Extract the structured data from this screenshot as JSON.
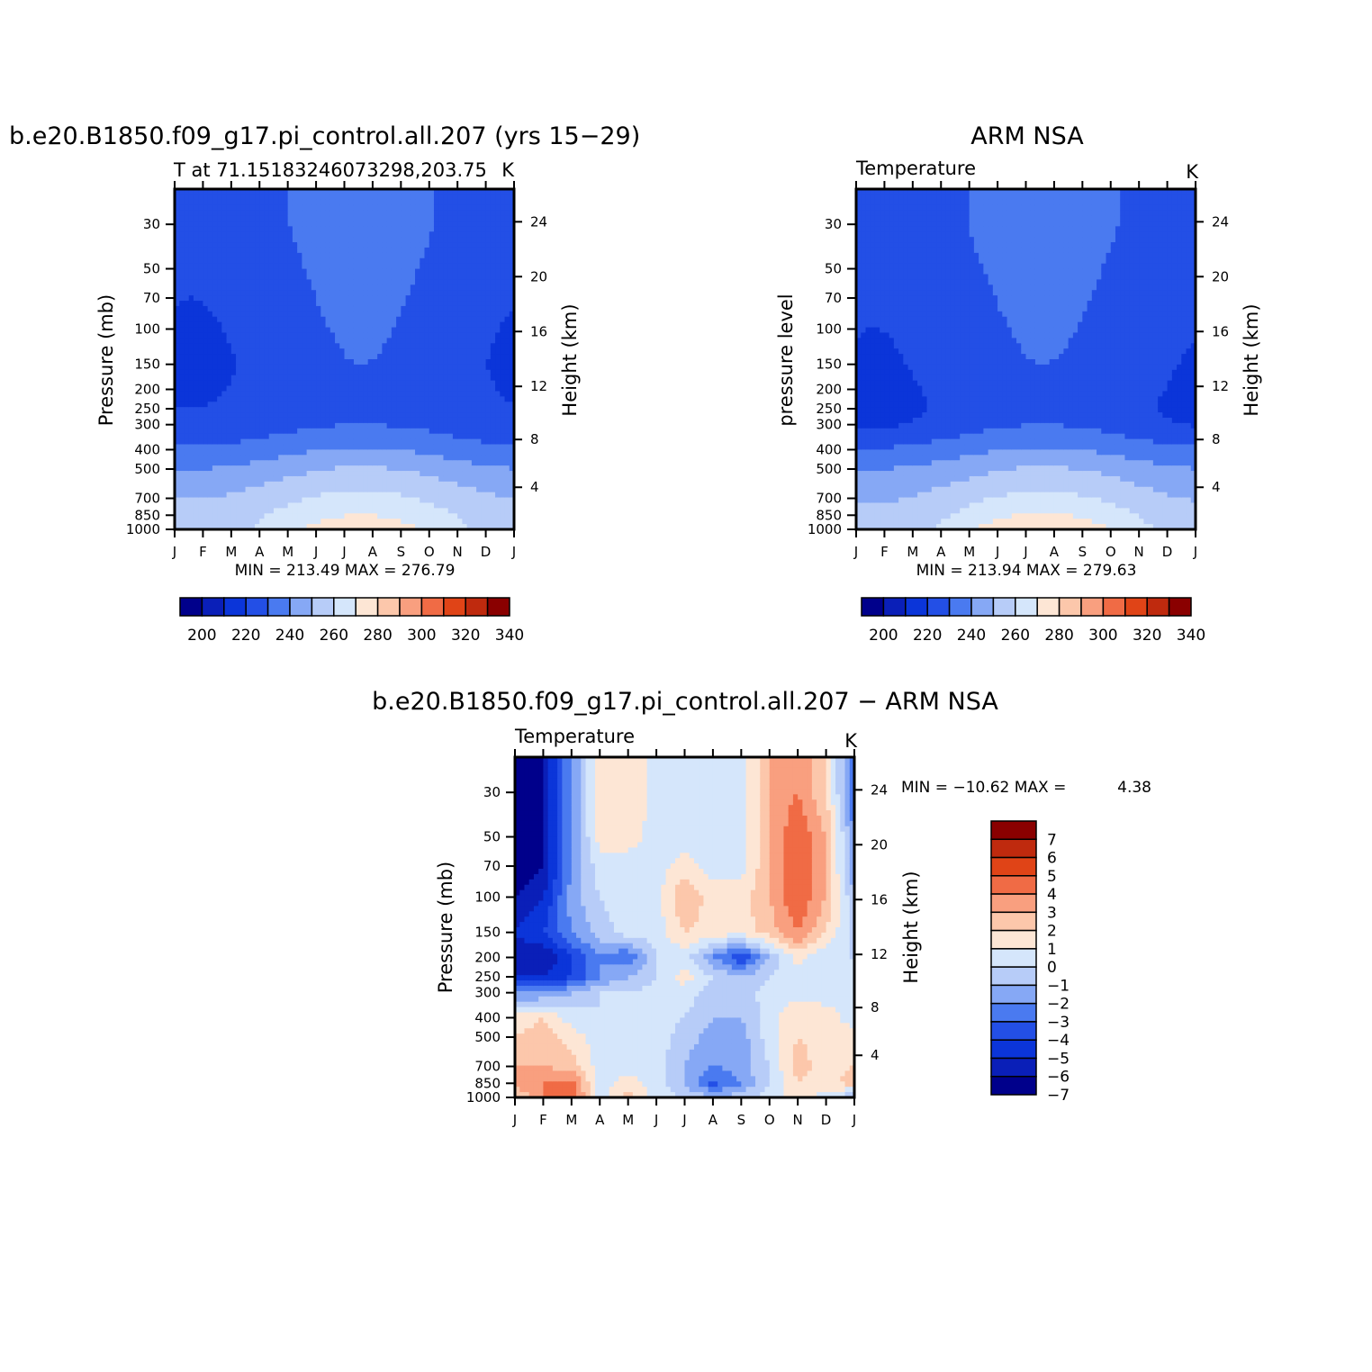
{
  "colors": {
    "abs": [
      "#00008b",
      "#0a1fb8",
      "#0b35d9",
      "#234fe6",
      "#4a7af0",
      "#86a8f5",
      "#b7ccf8",
      "#d5e6fb",
      "#fde6d5",
      "#fcc7ab",
      "#f99f7f",
      "#f06b45",
      "#e04417",
      "#bf2a0e",
      "#8a0000"
    ],
    "diff": [
      "#00008b",
      "#0a1fb8",
      "#0b35d9",
      "#234fe6",
      "#4a7af0",
      "#86a8f5",
      "#b7ccf8",
      "#d5e6fb",
      "#fde6d5",
      "#fcc7ab",
      "#f99f7f",
      "#f06b45",
      "#e04417",
      "#bf2a0e",
      "#8a0000"
    ]
  },
  "chart_data": [
    {
      "type": "heatmap",
      "title": "b.e20.B1850.f09_g17.pi_control.all.207 (yrs 15−29)",
      "subtitle_left": "T at 71.15183246073298,203.75",
      "subtitle_right": "K",
      "ylabel": "Pressure (mb)",
      "y2label": "Height (km)",
      "x_ticklabels": [
        "J",
        "F",
        "M",
        "A",
        "M",
        "J",
        "J",
        "A",
        "S",
        "O",
        "N",
        "D",
        "J"
      ],
      "y_ticks": [
        30,
        50,
        70,
        100,
        150,
        200,
        250,
        300,
        400,
        500,
        700,
        850,
        1000
      ],
      "y2_ticks": [
        24,
        20,
        16,
        12,
        8,
        4
      ],
      "ylim": [
        1000,
        20
      ],
      "stats": "MIN = 213.49 MAX = 276.79",
      "colorbar": {
        "labels": [
          "200",
          "220",
          "240",
          "260",
          "280",
          "300",
          "320",
          "340"
        ],
        "levels": [
          200,
          210,
          220,
          230,
          240,
          250,
          260,
          270,
          280,
          290,
          300,
          310,
          320,
          330,
          340
        ]
      },
      "profile": {
        "levels": [
          1000,
          850,
          700,
          500,
          400,
          300,
          250,
          200,
          150,
          100,
          70,
          50,
          30
        ],
        "winter_temps": [
          254,
          253,
          250,
          240,
          231,
          222,
          220,
          219,
          218,
          219,
          220,
          221,
          222
        ],
        "summer_temps": [
          276,
          270,
          263,
          251,
          241,
          230,
          229,
          229,
          230,
          231,
          232,
          233,
          235
        ]
      }
    },
    {
      "type": "heatmap",
      "title": "ARM NSA",
      "subtitle_left": "Temperature",
      "subtitle_right": "K",
      "ylabel": "pressure level",
      "y2label": "Height (km)",
      "x_ticklabels": [
        "J",
        "F",
        "M",
        "A",
        "M",
        "J",
        "J",
        "A",
        "S",
        "O",
        "N",
        "D",
        "J"
      ],
      "y_ticks": [
        30,
        50,
        70,
        100,
        150,
        200,
        250,
        300,
        400,
        500,
        700,
        850,
        1000
      ],
      "y2_ticks": [
        24,
        20,
        16,
        12,
        8,
        4
      ],
      "ylim": [
        1000,
        20
      ],
      "stats": "MIN = 213.94 MAX = 279.63",
      "colorbar": {
        "labels": [
          "200",
          "220",
          "240",
          "260",
          "280",
          "300",
          "320",
          "340"
        ],
        "levels": [
          200,
          210,
          220,
          230,
          240,
          250,
          260,
          270,
          280,
          290,
          300,
          310,
          320,
          330,
          340
        ]
      },
      "profile": {
        "levels": [
          1000,
          850,
          700,
          500,
          400,
          300,
          250,
          200,
          150,
          100,
          70,
          50,
          30
        ],
        "winter_temps": [
          253,
          252,
          249,
          240,
          231,
          219,
          217,
          218,
          219,
          220,
          221,
          222,
          223
        ],
        "summer_temps": [
          279,
          271,
          263,
          251,
          241,
          230,
          229,
          229,
          230,
          231,
          232,
          233,
          235
        ]
      }
    },
    {
      "type": "heatmap",
      "title": "b.e20.B1850.f09_g17.pi_control.all.207 − ARM NSA",
      "subtitle_left": "Temperature",
      "subtitle_right": "K",
      "ylabel": "Pressure (mb)",
      "y2label": "Height (km)",
      "x_ticklabels": [
        "J",
        "F",
        "M",
        "A",
        "M",
        "J",
        "J",
        "A",
        "S",
        "O",
        "N",
        "D",
        "J"
      ],
      "y_ticks": [
        30,
        50,
        70,
        100,
        150,
        200,
        250,
        300,
        400,
        500,
        700,
        850,
        1000
      ],
      "y2_ticks": [
        24,
        20,
        16,
        12,
        8,
        4
      ],
      "ylim": [
        1000,
        20
      ],
      "stats_label": "MIN = −10.62 MAX =",
      "stats_value": "4.38",
      "colorbar": {
        "labels": [
          "7",
          "6",
          "5",
          "4",
          "3",
          "2",
          "1",
          "0",
          "−1",
          "−2",
          "−3",
          "−4",
          "−5",
          "−6",
          "−7"
        ],
        "levels": [
          -7,
          -6,
          -5,
          -4,
          -3,
          -2,
          -1,
          0,
          1,
          2,
          3,
          4,
          5,
          6,
          7
        ]
      },
      "grid": {
        "months": [
          0,
          1,
          2,
          3,
          4,
          5,
          6,
          7,
          8,
          9,
          10,
          11,
          12
        ],
        "levels": [
          30,
          50,
          70,
          100,
          150,
          200,
          250,
          300,
          400,
          500,
          700,
          850,
          1000
        ],
        "values": [
          [
            -8,
            -7,
            -3,
            0.5,
            1,
            -0.5,
            -0.5,
            -1,
            -0.5,
            2,
            3,
            1,
            -4
          ],
          [
            -8,
            -7,
            -3,
            0.5,
            0.5,
            -0.5,
            -0.5,
            -0.5,
            -0.5,
            2,
            4,
            2,
            -3
          ],
          [
            -8,
            -7,
            -3,
            -0.5,
            -0.5,
            -0.5,
            0.5,
            -0.5,
            -0.5,
            2,
            4,
            2,
            -3
          ],
          [
            -7,
            -6,
            -2.5,
            -1,
            -0.5,
            -0.5,
            2,
            0.5,
            0.5,
            2,
            4,
            2,
            -2
          ],
          [
            -6,
            -5,
            -3,
            -1.5,
            -0.5,
            -0.5,
            1,
            0.5,
            0.5,
            1.5,
            3,
            1,
            -1.5
          ],
          [
            -6.5,
            -7,
            -5,
            -3,
            -4,
            -1,
            -0.5,
            -3,
            -5,
            -2,
            0.5,
            -1,
            -1
          ],
          [
            -6,
            -6,
            -5,
            -3,
            -2,
            -1,
            0.5,
            -1,
            -2,
            -1,
            -0.5,
            -1,
            -1
          ],
          [
            -3,
            -3,
            -2,
            -1,
            -1,
            -0.5,
            -0.5,
            -1.5,
            -1.5,
            -0.5,
            -0.5,
            -0.5,
            -0.5
          ],
          [
            0.5,
            1,
            -0.5,
            -1,
            -0.5,
            -0.5,
            -1,
            -2,
            -2,
            -0.5,
            1,
            0.5,
            -0.5
          ],
          [
            1,
            1.5,
            0.5,
            -0.5,
            -0.5,
            -0.5,
            -1.5,
            -2.5,
            -2.5,
            -0.5,
            1,
            0.5,
            0.5
          ],
          [
            2,
            2,
            1.5,
            -0.5,
            -0.5,
            -0.5,
            -2,
            -3,
            -2.5,
            -1,
            1.5,
            0.5,
            1
          ],
          [
            2.5,
            3,
            3.5,
            -0.5,
            0.5,
            -0.5,
            -2,
            -4.5,
            -3,
            -1,
            1,
            0.5,
            1.5
          ],
          [
            1,
            3,
            4,
            -0.5,
            1.5,
            -0.5,
            -1,
            -2,
            -1.5,
            -0.5,
            0.5,
            -0.5,
            -2
          ]
        ]
      }
    }
  ]
}
